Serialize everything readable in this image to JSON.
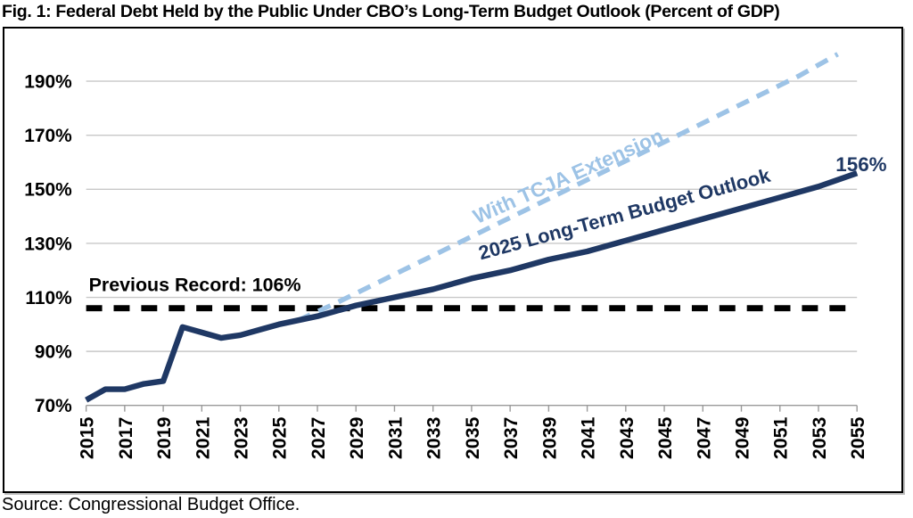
{
  "title": "Fig. 1: Federal Debt Held by the Public Under CBO’s Long-Term Budget Outlook (Percent of GDP)",
  "source": "Source: Congressional Budget Office.",
  "colors": {
    "navy": "#1F3864",
    "light_blue": "#9DC3E6",
    "black": "#000000",
    "gridline": "#C8C8C8",
    "axis": "#9A9A9A"
  },
  "chart_data": {
    "type": "line",
    "title": "Fig. 1: Federal Debt Held by the Public Under CBO’s Long-Term Budget Outlook (Percent of GDP)",
    "xlabel": "",
    "ylabel": "Percent of GDP",
    "xlim": [
      2015,
      2055
    ],
    "ylim": [
      70,
      200
    ],
    "grid": true,
    "legend_position": "none",
    "y_ticks": [
      {
        "value": 190,
        "label": "190%"
      },
      {
        "value": 170,
        "label": "170%"
      },
      {
        "value": 150,
        "label": "150%"
      },
      {
        "value": 130,
        "label": "130%"
      },
      {
        "value": 110,
        "label": "110%"
      },
      {
        "value": 90,
        "label": "90%"
      },
      {
        "value": 70,
        "label": "70%"
      }
    ],
    "x_ticks": [
      "2015",
      "2017",
      "2019",
      "2021",
      "2023",
      "2025",
      "2027",
      "2029",
      "2031",
      "2033",
      "2035",
      "2037",
      "2039",
      "2041",
      "2043",
      "2045",
      "2047",
      "2049",
      "2051",
      "2053",
      "2055"
    ],
    "series": [
      {
        "name": "Previous Record",
        "color": "#000000",
        "style": "dashed-bold",
        "points": [
          [
            2015,
            106
          ],
          [
            2055,
            106
          ]
        ]
      },
      {
        "name": "With TCJA Extension",
        "color": "#9DC3E6",
        "style": "dashed",
        "points": [
          [
            2026,
            101.5
          ],
          [
            2028,
            108
          ],
          [
            2030,
            115
          ],
          [
            2032,
            122
          ],
          [
            2034,
            129
          ],
          [
            2036,
            136
          ],
          [
            2038,
            143
          ],
          [
            2040,
            150
          ],
          [
            2042,
            157
          ],
          [
            2044,
            164
          ],
          [
            2046,
            171
          ],
          [
            2048,
            178
          ],
          [
            2050,
            185
          ],
          [
            2052,
            192
          ],
          [
            2054,
            200
          ]
        ]
      },
      {
        "name": "2025 Long-Term Budget Outlook",
        "color": "#1F3864",
        "style": "solid",
        "points": [
          [
            2015,
            72
          ],
          [
            2016,
            76
          ],
          [
            2017,
            76
          ],
          [
            2018,
            78
          ],
          [
            2019,
            79
          ],
          [
            2020,
            99
          ],
          [
            2021,
            97
          ],
          [
            2022,
            95
          ],
          [
            2023,
            96
          ],
          [
            2024,
            98
          ],
          [
            2025,
            100
          ],
          [
            2027,
            103
          ],
          [
            2029,
            107
          ],
          [
            2031,
            110
          ],
          [
            2033,
            113
          ],
          [
            2035,
            117
          ],
          [
            2037,
            120
          ],
          [
            2039,
            124
          ],
          [
            2041,
            127
          ],
          [
            2043,
            131
          ],
          [
            2045,
            135
          ],
          [
            2047,
            139
          ],
          [
            2049,
            143
          ],
          [
            2051,
            147
          ],
          [
            2053,
            151
          ],
          [
            2055,
            156
          ]
        ]
      }
    ],
    "annotations": [
      {
        "id": "prev-record-label",
        "text": "Previous Record: 106%"
      },
      {
        "id": "tcja-label",
        "text": "With TCJA Extension"
      },
      {
        "id": "outlook-label",
        "text": "2025 Long-Term Budget Outlook"
      },
      {
        "id": "end-value-label",
        "text": "156%"
      }
    ]
  }
}
